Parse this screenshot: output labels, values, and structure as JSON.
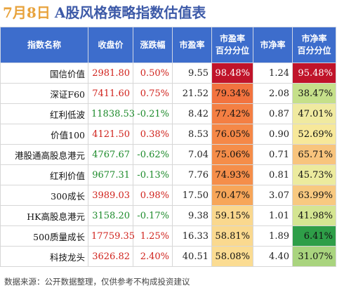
{
  "title": {
    "date": "7月8日",
    "main": "A股风格策略指数估值表"
  },
  "columns": [
    "指数名称",
    "收盘价",
    "涨跌幅",
    "市盈率",
    "市盈率\n百分分位",
    "市净率",
    "市净率\n百分分位"
  ],
  "rows": [
    {
      "name": "国信价值",
      "close": "2981.80",
      "change": "0.50%",
      "dir": "pos",
      "pe": "9.55",
      "pe_pct": "98.48%",
      "pe_color": "#c0142a",
      "pe_text": "#ffffff",
      "pb": "1.24",
      "pb_pct": "95.48%",
      "pb_color": "#c0142a",
      "pb_text": "#ffffff"
    },
    {
      "name": "深证F60",
      "close": "7411.60",
      "change": "0.75%",
      "dir": "pos",
      "pe": "21.52",
      "pe_pct": "79.34%",
      "pe_color": "#f2733f",
      "pe_text": "#111111",
      "pb": "2.08",
      "pb_pct": "38.47%",
      "pb_color": "#c5e08a",
      "pb_text": "#111111"
    },
    {
      "name": "红利低波",
      "close": "11838.53",
      "change": "-0.21%",
      "dir": "neg",
      "pe": "8.42",
      "pe_pct": "77.42%",
      "pe_color": "#f47f43",
      "pe_text": "#111111",
      "pb": "0.87",
      "pb_pct": "47.01%",
      "pb_color": "#f0eaa0",
      "pb_text": "#111111"
    },
    {
      "name": "价值100",
      "close": "4121.50",
      "change": "0.38%",
      "dir": "pos",
      "pe": "8.53",
      "pe_pct": "76.05%",
      "pe_color": "#f58847",
      "pe_text": "#111111",
      "pb": "0.90",
      "pb_pct": "52.69%",
      "pb_color": "#f7e89a",
      "pb_text": "#111111"
    },
    {
      "name": "港股通高股息港元",
      "close": "4767.67",
      "change": "-0.62%",
      "dir": "neg",
      "pe": "7.04",
      "pe_pct": "75.06%",
      "pe_color": "#f58d49",
      "pe_text": "#111111",
      "pb": "0.71",
      "pb_pct": "65.71%",
      "pb_color": "#f8c47d",
      "pb_text": "#111111"
    },
    {
      "name": "红利价值",
      "close": "9677.31",
      "change": "-0.13%",
      "dir": "neg",
      "pe": "7.76",
      "pe_pct": "74.93%",
      "pe_color": "#f58e4a",
      "pe_text": "#111111",
      "pb": "0.81",
      "pb_pct": "45.73%",
      "pb_color": "#eceb9e",
      "pb_text": "#111111"
    },
    {
      "name": "300成长",
      "close": "3989.03",
      "change": "0.98%",
      "dir": "pos",
      "pe": "17.50",
      "pe_pct": "70.47%",
      "pe_color": "#f7a659",
      "pe_text": "#111111",
      "pb": "3.07",
      "pb_pct": "63.99%",
      "pb_color": "#f8c980",
      "pb_text": "#111111"
    },
    {
      "name": "HK高股息港元",
      "close": "3158.20",
      "change": "-0.17%",
      "dir": "neg",
      "pe": "9.38",
      "pe_pct": "59.15%",
      "pe_color": "#fad88e",
      "pe_text": "#111111",
      "pb": "1.01",
      "pb_pct": "41.98%",
      "pb_color": "#d4e592",
      "pb_text": "#111111"
    },
    {
      "name": "500质量成长",
      "close": "17759.35",
      "change": "1.25%",
      "dir": "pos",
      "pe": "16.33",
      "pe_pct": "58.81%",
      "pe_color": "#fad98f",
      "pe_text": "#111111",
      "pb": "1.89",
      "pb_pct": "6.41%",
      "pb_color": "#2e9e48",
      "pb_text": "#111111"
    },
    {
      "name": "科技龙头",
      "close": "3626.82",
      "change": "2.40%",
      "dir": "pos",
      "pe": "40.51",
      "pe_pct": "58.08%",
      "pe_color": "#fbdc92",
      "pe_text": "#111111",
      "pb": "4.40",
      "pb_pct": "31.07%",
      "pb_color": "#a9d47e",
      "pb_text": "#111111"
    }
  ],
  "footer": "数据来源：公开数据整理，仅供参考不构成投资建议"
}
